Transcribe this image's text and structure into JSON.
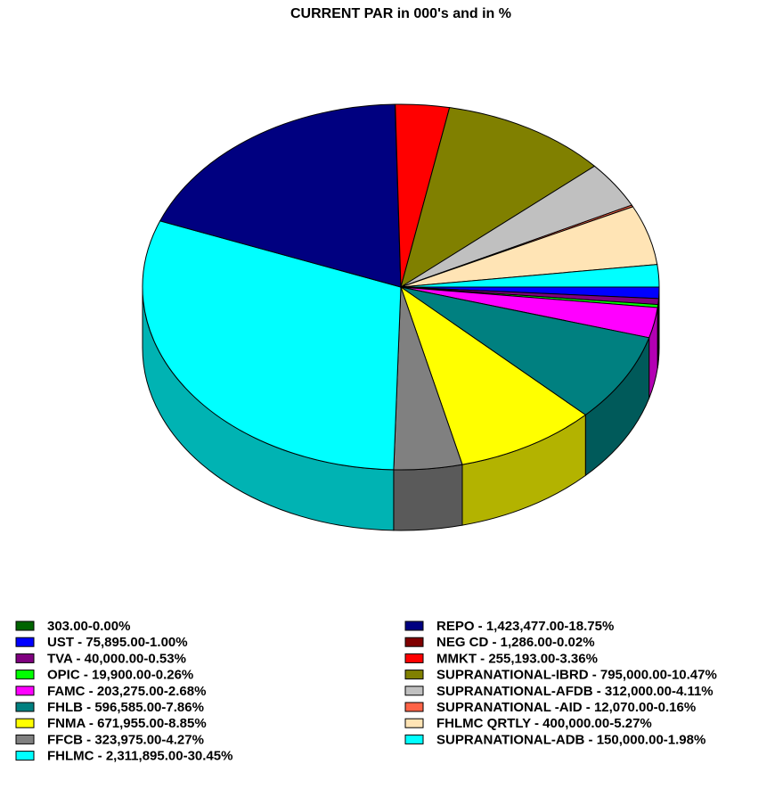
{
  "chart_data": {
    "type": "pie3d",
    "title": "CURRENT PAR in 000's and in %",
    "categories": [
      "303.00-0.00%",
      "UST - 75,895.00-1.00%",
      "TVA - 40,000.00-0.53%",
      "OPIC - 19,900.00-0.26%",
      "FAMC - 203,275.00-2.68%",
      "FHLB - 596,585.00-7.86%",
      "FNMA - 671,955.00-8.85%",
      "FFCB - 323,975.00-4.27%",
      "FHLMC - 2,311,895.00-30.45%",
      "REPO - 1,423,477.00-18.75%",
      "NEG CD - 1,286.00-0.02%",
      "MMKT - 255,193.00-3.36%",
      "SUPRANATIONAL-IBRD - 795,000.00-10.47%",
      "SUPRANATIONAL-AFDB - 312,000.00-4.11%",
      "SUPRANATIONAL -AID - 12,070.00-0.16%",
      "FHLMC QRTLY - 400,000.00-5.27%",
      "SUPRANATIONAL-ADB - 150,000.00-1.98%"
    ],
    "values": [
      303,
      75895,
      40000,
      19900,
      203275,
      596585,
      671955,
      323975,
      2311895,
      1423477,
      1286,
      255193,
      795000,
      312000,
      12070,
      400000,
      150000
    ],
    "colors": [
      "#006400",
      "#0000ff",
      "#800080",
      "#00ff00",
      "#ff00ff",
      "#008080",
      "#ffff00",
      "#808080",
      "#00ffff",
      "#000080",
      "#800000",
      "#ff0000",
      "#808000",
      "#c0c0c0",
      "#ff6347",
      "#ffe4b5",
      "#00ffff"
    ]
  }
}
